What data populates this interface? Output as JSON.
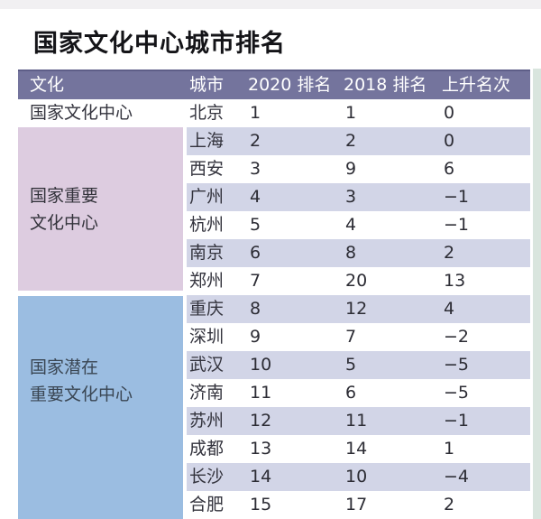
{
  "page": {
    "title": "国家文化中心城市排名"
  },
  "colors": {
    "header_bg": "#74749d",
    "header_text": "#ffffff",
    "row_stripe": "#d2d5e7",
    "group_important_bg": "#ddcce0",
    "group_potential_bg": "#9bbde1",
    "edge_strip": "#d9e5de",
    "body_text": "#2c2c34"
  },
  "table": {
    "columns": [
      {
        "label": "文化"
      },
      {
        "label": "城市"
      },
      {
        "label": "2020 排名"
      },
      {
        "label": "2018 排名"
      },
      {
        "label": "上升名次"
      }
    ],
    "groups": [
      {
        "name": "国家文化中心",
        "lines": [
          "国家文化中心"
        ]
      },
      {
        "name": "国家重要文化中心",
        "lines": [
          "国家重要",
          "文化中心"
        ]
      },
      {
        "name": "国家潜在重要文化中心",
        "lines": [
          "国家潜在",
          "重要文化中心"
        ]
      }
    ],
    "rows": [
      {
        "city": "北京",
        "rank2020": "1",
        "rank2018": "1",
        "change": "0",
        "group": "国家文化中心"
      },
      {
        "city": "上海",
        "rank2020": "2",
        "rank2018": "2",
        "change": "0",
        "group": "国家重要文化中心"
      },
      {
        "city": "西安",
        "rank2020": "3",
        "rank2018": "9",
        "change": "6",
        "group": "国家重要文化中心"
      },
      {
        "city": "广州",
        "rank2020": "4",
        "rank2018": "3",
        "change": "−1",
        "group": "国家重要文化中心"
      },
      {
        "city": "杭州",
        "rank2020": "5",
        "rank2018": "4",
        "change": "−1",
        "group": "国家重要文化中心"
      },
      {
        "city": "南京",
        "rank2020": "6",
        "rank2018": "8",
        "change": "2",
        "group": "国家重要文化中心"
      },
      {
        "city": "郑州",
        "rank2020": "7",
        "rank2018": "20",
        "change": "13",
        "group": "国家重要文化中心"
      },
      {
        "city": "重庆",
        "rank2020": "8",
        "rank2018": "12",
        "change": "4",
        "group": "国家潜在重要文化中心"
      },
      {
        "city": "深圳",
        "rank2020": "9",
        "rank2018": "7",
        "change": "−2",
        "group": "国家潜在重要文化中心"
      },
      {
        "city": "武汉",
        "rank2020": "10",
        "rank2018": "5",
        "change": "−5",
        "group": "国家潜在重要文化中心"
      },
      {
        "city": "济南",
        "rank2020": "11",
        "rank2018": "6",
        "change": "−5",
        "group": "国家潜在重要文化中心"
      },
      {
        "city": "苏州",
        "rank2020": "12",
        "rank2018": "11",
        "change": "−1",
        "group": "国家潜在重要文化中心"
      },
      {
        "city": "成都",
        "rank2020": "13",
        "rank2018": "14",
        "change": "1",
        "group": "国家潜在重要文化中心"
      },
      {
        "city": "长沙",
        "rank2020": "14",
        "rank2018": "10",
        "change": "−4",
        "group": "国家潜在重要文化中心"
      },
      {
        "city": "合肥",
        "rank2020": "15",
        "rank2018": "17",
        "change": "2",
        "group": "国家潜在重要文化中心"
      }
    ]
  },
  "chart_data": {
    "type": "table",
    "title": "国家文化中心城市排名",
    "columns": [
      "文化",
      "城市",
      "2020 排名",
      "2018 排名",
      "上升名次"
    ],
    "rows": [
      [
        "国家文化中心",
        "北京",
        1,
        1,
        0
      ],
      [
        "国家重要文化中心",
        "上海",
        2,
        2,
        0
      ],
      [
        "国家重要文化中心",
        "西安",
        3,
        9,
        6
      ],
      [
        "国家重要文化中心",
        "广州",
        4,
        3,
        -1
      ],
      [
        "国家重要文化中心",
        "杭州",
        5,
        4,
        -1
      ],
      [
        "国家重要文化中心",
        "南京",
        6,
        8,
        2
      ],
      [
        "国家重要文化中心",
        "郑州",
        7,
        20,
        13
      ],
      [
        "国家潜在重要文化中心",
        "重庆",
        8,
        12,
        4
      ],
      [
        "国家潜在重要文化中心",
        "深圳",
        9,
        7,
        -2
      ],
      [
        "国家潜在重要文化中心",
        "武汉",
        10,
        5,
        -5
      ],
      [
        "国家潜在重要文化中心",
        "济南",
        11,
        6,
        -5
      ],
      [
        "国家潜在重要文化中心",
        "苏州",
        12,
        11,
        -1
      ],
      [
        "国家潜在重要文化中心",
        "成都",
        13,
        14,
        1
      ],
      [
        "国家潜在重要文化中心",
        "长沙",
        14,
        10,
        -4
      ],
      [
        "国家潜在重要文化中心",
        "合肥",
        15,
        17,
        2
      ]
    ]
  }
}
